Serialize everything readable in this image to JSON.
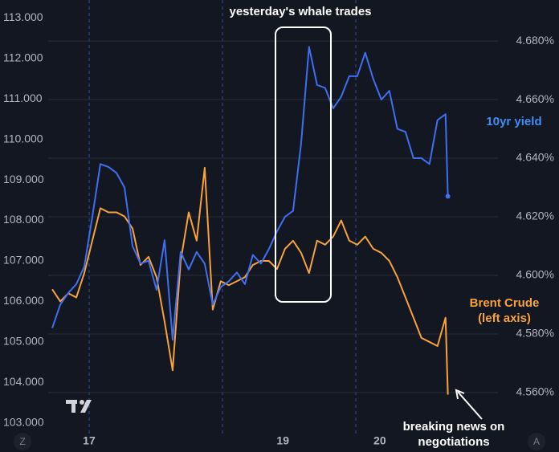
{
  "chart_data": {
    "type": "line",
    "title": "yesterday's whale trades",
    "annotations": [
      "(left axis)",
      "breaking news on",
      "negotiations"
    ],
    "x": [
      16.619,
      16.702,
      16.785,
      16.868,
      16.95,
      17.033,
      17.116,
      17.199,
      17.282,
      17.365,
      17.448,
      17.53,
      17.613,
      17.696,
      17.779,
      17.862,
      17.945,
      18.028,
      18.11,
      18.193,
      18.276,
      18.359,
      18.442,
      18.525,
      18.608,
      18.69,
      18.773,
      18.856,
      18.939,
      19.022,
      19.105,
      19.188,
      19.27,
      19.353,
      19.436,
      19.519,
      19.602,
      19.685,
      19.768,
      19.85,
      19.933,
      20.016,
      20.099,
      20.182,
      20.265,
      20.348,
      20.43,
      20.513,
      20.596,
      20.679,
      20.703
    ],
    "xlim": [
      16.08,
      21.85
    ],
    "xticks": [
      17,
      19,
      20
    ],
    "ylim": [
      102.74,
      113.44
    ],
    "yticks": [
      {
        "value": 103,
        "label": "103.000"
      },
      {
        "value": 104,
        "label": "104.000"
      },
      {
        "value": 105,
        "label": "105.000"
      },
      {
        "value": 106,
        "label": "106.000"
      },
      {
        "value": 107,
        "label": "107.000"
      },
      {
        "value": 108,
        "label": "108.000"
      },
      {
        "value": 109,
        "label": "109.000"
      },
      {
        "value": 110,
        "label": "110.000"
      },
      {
        "value": 111,
        "label": "111.000"
      },
      {
        "value": 112,
        "label": "112.000"
      },
      {
        "value": 113,
        "label": "113.000"
      }
    ],
    "y2lim": [
      4.546,
      4.694
    ],
    "y2ticks": [
      {
        "value": 4.56,
        "label": "4.560%"
      },
      {
        "value": 4.58,
        "label": "4.580%"
      },
      {
        "value": 4.6,
        "label": "4.600%"
      },
      {
        "value": 4.62,
        "label": "4.620%"
      },
      {
        "value": 4.64,
        "label": "4.640%"
      },
      {
        "value": 4.66,
        "label": "4.660%"
      },
      {
        "value": 4.68,
        "label": "4.680%"
      }
    ],
    "grid": true,
    "series": [
      {
        "name": "Brent Crude",
        "color": "#f7a23a",
        "values": [
          106.3,
          106.0,
          106.2,
          106.1,
          106.7,
          107.5,
          108.3,
          108.2,
          108.2,
          108.1,
          107.8,
          106.9,
          107.1,
          106.6,
          105.5,
          104.3,
          107.0,
          108.2,
          107.5,
          109.3,
          105.8,
          106.5,
          106.4,
          106.5,
          106.6,
          106.9,
          107.0,
          107.0,
          106.8,
          107.3,
          107.5,
          107.2,
          106.7,
          107.5,
          107.4,
          107.6,
          108.0,
          107.5,
          107.4,
          107.6,
          107.3,
          107.2,
          107.0,
          106.6,
          106.1,
          105.6,
          105.1,
          105.0,
          104.9,
          105.6,
          103.7
        ]
      },
      {
        "name": "10yr yield",
        "color": "#3f6ff0",
        "axis": "y2",
        "values": [
          4.582,
          4.59,
          4.594,
          4.597,
          4.603,
          4.62,
          4.638,
          4.637,
          4.635,
          4.63,
          4.61,
          4.604,
          4.605,
          4.595,
          4.612,
          4.578,
          4.608,
          4.602,
          4.608,
          4.604,
          4.59,
          4.596,
          4.598,
          4.601,
          4.597,
          4.607,
          4.604,
          4.609,
          4.615,
          4.62,
          4.622,
          4.645,
          4.678,
          4.665,
          4.664,
          4.657,
          4.661,
          4.668,
          4.668,
          4.676,
          4.667,
          4.66,
          4.663,
          4.65,
          4.649,
          4.64,
          4.64,
          4.638,
          4.653,
          4.655,
          4.627
        ]
      }
    ]
  },
  "ui": {
    "buttons": [
      "Z",
      "A"
    ]
  }
}
